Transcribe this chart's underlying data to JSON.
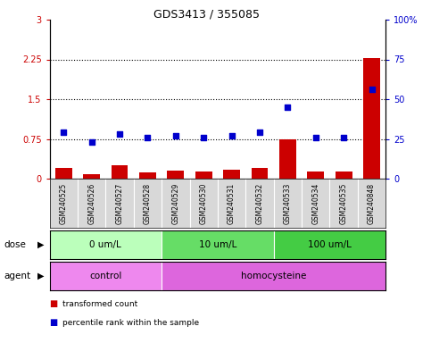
{
  "title": "GDS3413 / 355085",
  "samples": [
    "GSM240525",
    "GSM240526",
    "GSM240527",
    "GSM240528",
    "GSM240529",
    "GSM240530",
    "GSM240531",
    "GSM240532",
    "GSM240533",
    "GSM240534",
    "GSM240535",
    "GSM240848"
  ],
  "transformed_count": [
    0.2,
    0.08,
    0.25,
    0.12,
    0.15,
    0.13,
    0.17,
    0.2,
    0.75,
    0.13,
    0.14,
    2.28
  ],
  "percentile_rank": [
    29,
    23,
    28,
    26,
    27,
    26,
    27,
    29,
    45,
    26,
    26,
    56
  ],
  "left_ylim": [
    0,
    3
  ],
  "right_ylim": [
    0,
    100
  ],
  "left_yticks": [
    0,
    0.75,
    1.5,
    2.25,
    3
  ],
  "right_yticks": [
    0,
    25,
    50,
    75,
    100
  ],
  "left_ytick_labels": [
    "0",
    "0.75",
    "1.5",
    "2.25",
    "3"
  ],
  "right_ytick_labels": [
    "0",
    "25",
    "50",
    "75",
    "100%"
  ],
  "hlines": [
    0.75,
    1.5,
    2.25
  ],
  "bar_color": "#cc0000",
  "scatter_color": "#0000cc",
  "dose_groups": [
    {
      "label": "0 um/L",
      "start": 0,
      "end": 3,
      "color": "#bbffbb"
    },
    {
      "label": "10 um/L",
      "start": 4,
      "end": 7,
      "color": "#66dd66"
    },
    {
      "label": "100 um/L",
      "start": 8,
      "end": 11,
      "color": "#44cc44"
    }
  ],
  "agent_groups": [
    {
      "label": "control",
      "start": 0,
      "end": 3,
      "color": "#ee88ee"
    },
    {
      "label": "homocysteine",
      "start": 4,
      "end": 11,
      "color": "#dd66dd"
    }
  ],
  "dose_label": "dose",
  "agent_label": "agent",
  "legend_items": [
    {
      "color": "#cc0000",
      "label": "transformed count"
    },
    {
      "color": "#0000cc",
      "label": "percentile rank within the sample"
    }
  ],
  "left_tick_color": "#cc0000",
  "right_tick_color": "#0000cc",
  "bg_color": "#d8d8d8",
  "plot_bg": "#ffffff"
}
